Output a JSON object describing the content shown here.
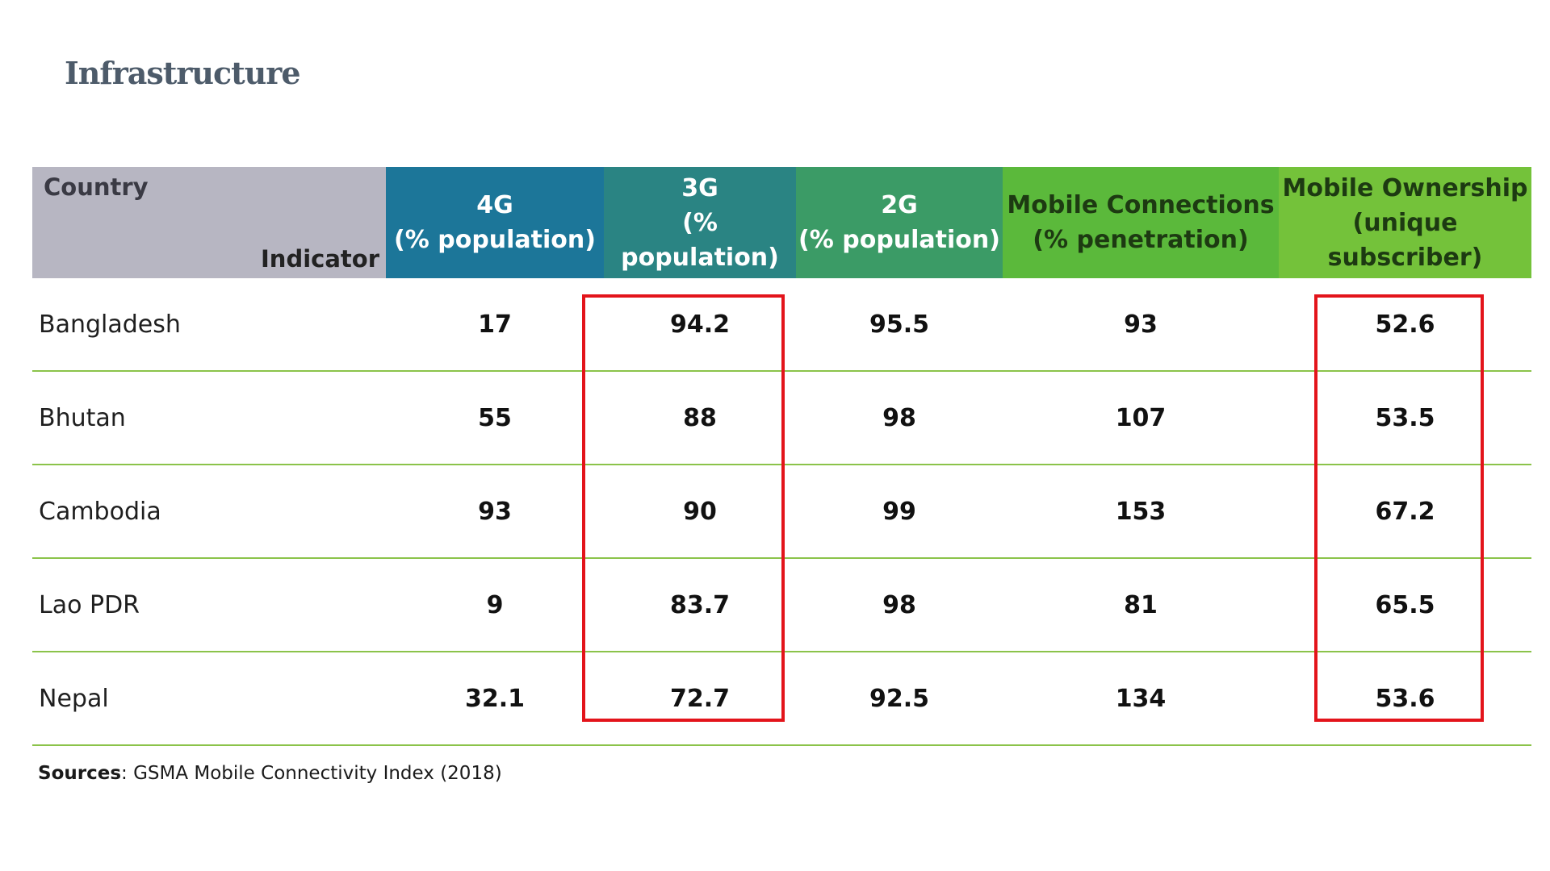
{
  "title": "Infrastructure",
  "table": {
    "corner": {
      "row_dimension_label": "Country",
      "column_dimension_label": "Indicator"
    },
    "columns": [
      {
        "line1": "4G",
        "line2": "(% population)"
      },
      {
        "line1": "3G",
        "line2": "(% population)"
      },
      {
        "line1": "2G",
        "line2": "(% population)"
      },
      {
        "line1": "Mobile Connections",
        "line2": "(% penetration)"
      },
      {
        "line1": "Mobile Ownership",
        "line2": "(unique subscriber)"
      }
    ],
    "rows": [
      {
        "country": "Bangladesh",
        "values": [
          "17",
          "94.2",
          "95.5",
          "93",
          "52.6"
        ]
      },
      {
        "country": "Bhutan",
        "values": [
          "55",
          "88",
          "98",
          "107",
          "53.5"
        ]
      },
      {
        "country": "Cambodia",
        "values": [
          "93",
          "90",
          "99",
          "153",
          "67.2"
        ]
      },
      {
        "country": "Lao PDR",
        "values": [
          "9",
          "83.7",
          "98",
          "81",
          "65.5"
        ]
      },
      {
        "country": "Nepal",
        "values": [
          "32.1",
          "72.7",
          "92.5",
          "134",
          "53.6"
        ]
      }
    ],
    "highlighted_columns": [
      "3G",
      "Mobile Ownership"
    ]
  },
  "sources": {
    "label": "Sources",
    "text": ": GSMA Mobile Connectivity Index (2018)"
  },
  "colors": {
    "title": "#4d5b6a",
    "header_dimension": "#b7b6c2",
    "header_4g": "#1c7699",
    "header_3g": "#2a8483",
    "header_2g": "#3b9b66",
    "header_mobile_connections": "#5bb93b",
    "header_mobile_ownership": "#74c23a",
    "row_divider": "#8bc34a",
    "highlight_box": "#e3141b"
  }
}
